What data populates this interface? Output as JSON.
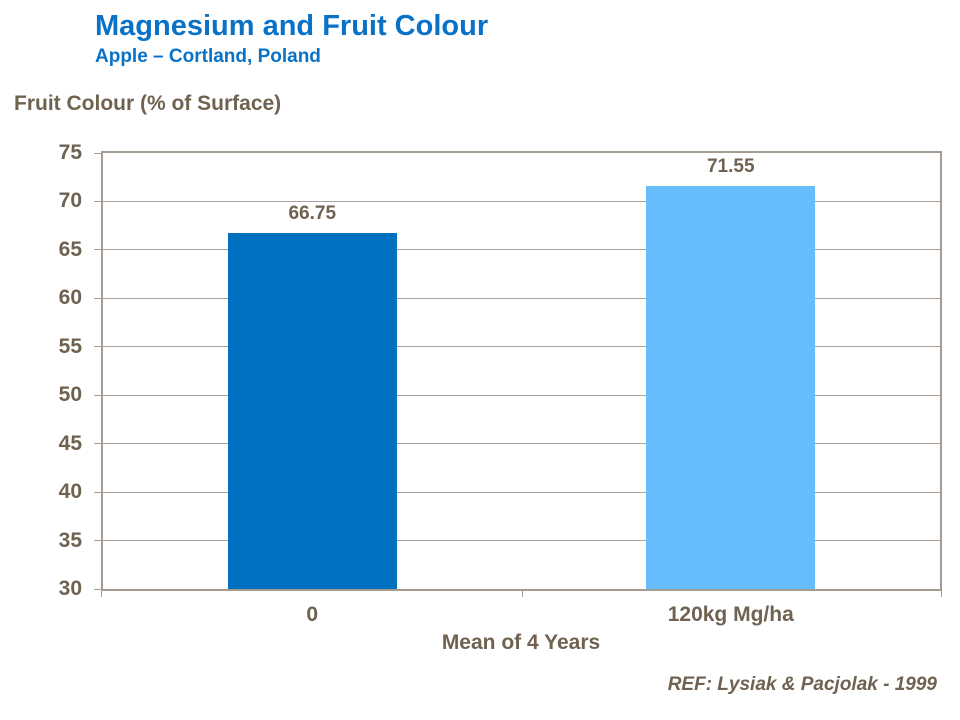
{
  "header": {
    "title": "Magnesium and Fruit Colour",
    "subtitle": "Apple – Cortland, Poland"
  },
  "chart_data": {
    "type": "bar",
    "title": "Magnesium and Fruit Colour",
    "subtitle": "Apple – Cortland, Poland",
    "categories": [
      "0",
      "120kg Mg/ha"
    ],
    "values": [
      66.75,
      71.55
    ],
    "data_labels": [
      "66.75",
      "71.55"
    ],
    "bar_colors": [
      "#0070C0",
      "#67BCFC"
    ],
    "ylabel": "Fruit Colour (% of Surface)",
    "xlabel": "Mean of 4 Years",
    "ylim": [
      30,
      75
    ],
    "ytick_step": 5,
    "yticks": [
      30,
      35,
      40,
      45,
      50,
      55,
      60,
      65,
      70,
      75
    ],
    "grid": "horizontal",
    "legend_position": "none"
  },
  "footer": {
    "reference": "REF: Lysiak & Pacjolak - 1999"
  },
  "colors": {
    "title_blue": "#0A72C6",
    "bar_dark_blue": "#0070C0",
    "bar_light_blue": "#67BCFC",
    "text_brown": "#6F6250",
    "axis_line": "#A49C91"
  }
}
